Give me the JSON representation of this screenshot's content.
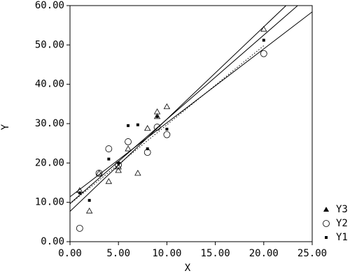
{
  "chart_data": {
    "type": "scatter",
    "xlabel": "X",
    "ylabel": "Y",
    "xlim": [
      0,
      25
    ],
    "ylim": [
      0,
      60
    ],
    "xticks": [
      {
        "value": 0,
        "label": "0.00"
      },
      {
        "value": 5,
        "label": "5.00"
      },
      {
        "value": 10,
        "label": "10.00"
      },
      {
        "value": 15,
        "label": "15.00"
      },
      {
        "value": 20,
        "label": "20.00"
      },
      {
        "value": 25,
        "label": "25.00"
      }
    ],
    "yticks": [
      {
        "value": 0,
        "label": "0.00"
      },
      {
        "value": 10,
        "label": "10.00"
      },
      {
        "value": 20,
        "label": "20.00"
      },
      {
        "value": 30,
        "label": "30.00"
      },
      {
        "value": 40,
        "label": "40.00"
      },
      {
        "value": 50,
        "label": "50.00"
      },
      {
        "value": 60,
        "label": "60.00"
      }
    ],
    "series": [
      {
        "name": "Y3",
        "marker": "triangle",
        "color": "#000000",
        "x": [
          1,
          2,
          3,
          4,
          5,
          5,
          6,
          7,
          8,
          9,
          9,
          10,
          20
        ],
        "values": [
          13.0,
          7.8,
          17.4,
          15.3,
          18.1,
          19.0,
          23.6,
          17.4,
          28.8,
          33.0,
          31.8,
          34.3,
          54.0
        ]
      },
      {
        "name": "Y2",
        "marker": "circle",
        "color": "#000000",
        "x": [
          1,
          3,
          4,
          5,
          6,
          8,
          9,
          10,
          20
        ],
        "values": [
          3.4,
          17.4,
          23.6,
          19.5,
          25.4,
          22.7,
          29.1,
          27.2,
          47.8
        ]
      },
      {
        "name": "Y1",
        "marker": "square",
        "color": "#000000",
        "x": [
          1,
          2,
          4,
          5,
          6,
          7,
          8,
          9,
          10,
          20
        ],
        "values": [
          12.4,
          10.5,
          21.0,
          20.0,
          29.5,
          29.7,
          23.6,
          31.8,
          28.6,
          51.2
        ]
      }
    ],
    "fit_lines": [
      {
        "style": "solid",
        "x": [
          0,
          22.3
        ],
        "values": [
          7.7,
          60
        ]
      },
      {
        "style": "solid",
        "x": [
          0,
          23.5
        ],
        "values": [
          9.7,
          60
        ]
      },
      {
        "style": "solid",
        "x": [
          0,
          25
        ],
        "values": [
          11.4,
          58.4
        ]
      },
      {
        "style": "dotted",
        "x": [
          0,
          20
        ],
        "values": [
          9.6,
          49.8
        ]
      }
    ]
  }
}
